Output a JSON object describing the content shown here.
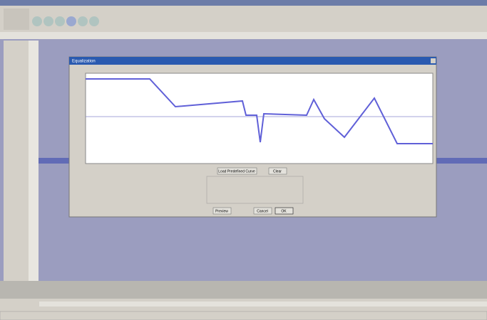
{
  "dialog": {
    "title": "Equalization",
    "buttons": {
      "load": "Load Predefined Curve",
      "clear": "Clear",
      "preview": "Preview",
      "cancel": "Cancel",
      "ok": "OK"
    }
  }
}
